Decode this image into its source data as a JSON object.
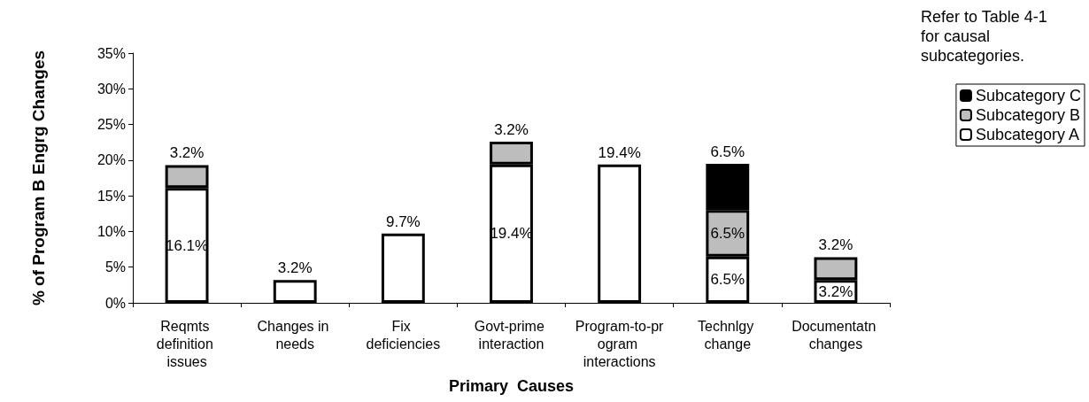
{
  "chart_data": {
    "type": "bar",
    "stacked": true,
    "xlabel": "Primary  Causes",
    "ylabel": "% of Program B Engrg Changes",
    "categories": [
      "Reqmts definition issues",
      "Changes in needs",
      "Fix deficiencies",
      "Govt-prime interaction",
      "Program-to-program interactions",
      "Technlgy change",
      "Documentatn changes"
    ],
    "series": [
      {
        "name": "Subcategory A",
        "color": "#ffffff",
        "values": [
          16.1,
          3.2,
          9.7,
          19.4,
          19.4,
          6.5,
          3.2
        ],
        "value_labels": [
          "16.1%",
          "3.2%",
          "9.7%",
          "19.4%",
          "19.4%",
          "6.5%",
          "3.2%"
        ]
      },
      {
        "name": "Subcategory B",
        "color": "#bdbdbd",
        "values": [
          3.2,
          null,
          null,
          3.2,
          null,
          6.5,
          3.2
        ],
        "value_labels": [
          "3.2%",
          null,
          null,
          "3.2%",
          null,
          "6.5%",
          "3.2%"
        ]
      },
      {
        "name": "Subcategory C",
        "color": "#000000",
        "values": [
          null,
          null,
          null,
          null,
          null,
          6.5,
          null
        ],
        "value_labels": [
          null,
          null,
          null,
          null,
          null,
          "6.5%",
          null
        ]
      }
    ],
    "ylim": [
      0,
      35
    ],
    "yticks": [
      {
        "value": 0,
        "label": "0%"
      },
      {
        "value": 5,
        "label": "5%"
      },
      {
        "value": 10,
        "label": "10%"
      },
      {
        "value": 15,
        "label": "15%"
      },
      {
        "value": 20,
        "label": "20%"
      },
      {
        "value": 25,
        "label": "25%"
      },
      {
        "value": 30,
        "label": "30%"
      },
      {
        "value": 35,
        "label": "35%"
      }
    ],
    "grid": false,
    "legend": "top right",
    "annotations": [
      "Refer to Table 4-1 for causal subcategories."
    ]
  }
}
